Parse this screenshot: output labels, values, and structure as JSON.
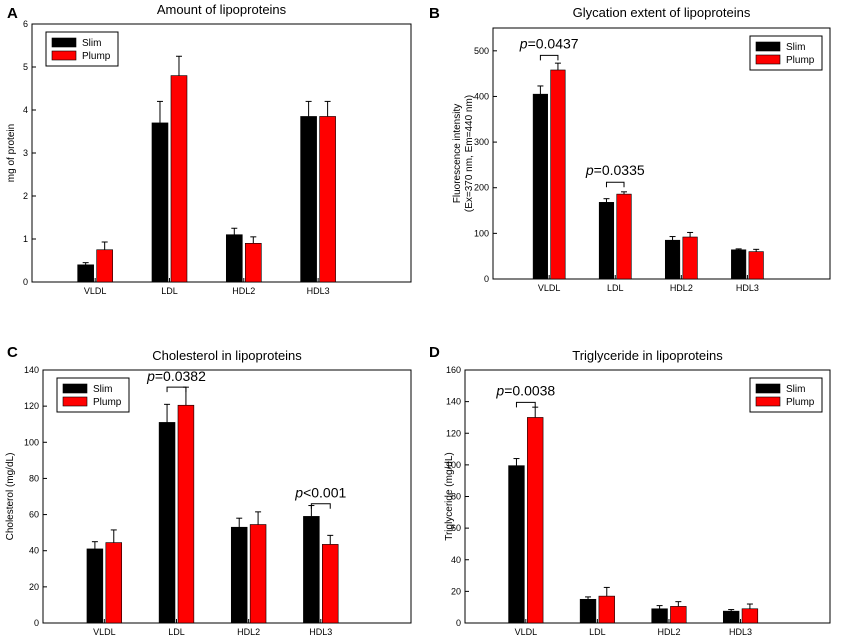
{
  "colors": {
    "slim": "#000000",
    "plump": "#ff0000",
    "error_bar": "#000000"
  },
  "legend_labels": {
    "slim": "Slim",
    "plump": "Plump"
  },
  "chart_data": [
    {
      "id": "A",
      "letter": "A",
      "type": "bar",
      "title": "Amount of lipoproteins",
      "xlabel": "",
      "ylabel": [
        "mg of protein"
      ],
      "categories": [
        "VLDL",
        "LDL",
        "HDL2",
        "HDL3"
      ],
      "ylim": [
        0,
        6
      ],
      "yticks": [
        0,
        1,
        2,
        3,
        4,
        5,
        6
      ],
      "legend": "top-left",
      "series": [
        {
          "name": "Slim",
          "values": [
            0.4,
            3.7,
            1.1,
            3.85
          ],
          "errors": [
            0.05,
            0.5,
            0.15,
            0.35
          ]
        },
        {
          "name": "Plump",
          "values": [
            0.75,
            4.8,
            0.9,
            3.85
          ],
          "errors": [
            0.18,
            0.45,
            0.15,
            0.35
          ]
        }
      ],
      "annotations": []
    },
    {
      "id": "B",
      "letter": "B",
      "type": "bar",
      "title": "Glycation extent of lipoproteins",
      "xlabel": "",
      "ylabel": [
        "Fluorescence intensity",
        "(Ex=370 nm, Em=440 nm)"
      ],
      "categories": [
        "VLDL",
        "LDL",
        "HDL2",
        "HDL3"
      ],
      "ylim": [
        0,
        550
      ],
      "yticks": [
        0,
        100,
        200,
        300,
        400,
        500
      ],
      "legend": "top-right",
      "series": [
        {
          "name": "Slim",
          "values": [
            405,
            168,
            85,
            64
          ],
          "errors": [
            18,
            8,
            8,
            2
          ]
        },
        {
          "name": "Plump",
          "values": [
            458,
            186,
            92,
            60
          ],
          "errors": [
            15,
            5,
            10,
            5
          ]
        }
      ],
      "annotations": [
        {
          "category": 0,
          "label": "p",
          "text": "=0.0437",
          "y": 505,
          "bracket_y": 490
        },
        {
          "category": 1,
          "label": "p",
          "text": "=0.0335",
          "y": 228,
          "bracket_y": 212
        }
      ]
    },
    {
      "id": "C",
      "letter": "C",
      "type": "bar",
      "title": "Cholesterol in lipoproteins",
      "xlabel": "",
      "ylabel": [
        "Cholesterol (mg/dL)"
      ],
      "categories": [
        "VLDL",
        "LDL",
        "HDL2",
        "HDL3"
      ],
      "ylim": [
        0,
        140
      ],
      "yticks": [
        0,
        20,
        40,
        60,
        80,
        100,
        120,
        140
      ],
      "legend": "top-left",
      "series": [
        {
          "name": "Slim",
          "values": [
            41,
            111,
            53,
            59
          ],
          "errors": [
            4,
            10,
            5,
            6
          ]
        },
        {
          "name": "Plump",
          "values": [
            44.5,
            120.5,
            54.5,
            43.5
          ],
          "errors": [
            7,
            10,
            7,
            5
          ]
        }
      ],
      "annotations": [
        {
          "category": 1,
          "label": "p",
          "text": "=0.0382",
          "y": 134,
          "bracket_y": 130.5
        },
        {
          "category": 3,
          "label": "p",
          "text": "<0.001",
          "y": 69.5,
          "bracket_y": 66
        }
      ]
    },
    {
      "id": "D",
      "letter": "D",
      "type": "bar",
      "title": "Triglyceride in lipoproteins",
      "xlabel": "",
      "ylabel": [
        "Triglyceride (mg/dL)"
      ],
      "categories": [
        "VLDL",
        "LDL",
        "HDL2",
        "HDL3"
      ],
      "ylim": [
        0,
        160
      ],
      "yticks": [
        0,
        20,
        40,
        60,
        80,
        100,
        120,
        140,
        160
      ],
      "legend": "top-right",
      "series": [
        {
          "name": "Slim",
          "values": [
            99.5,
            15,
            9,
            7.5
          ],
          "errors": [
            4.5,
            1.5,
            2,
            1
          ]
        },
        {
          "name": "Plump",
          "values": [
            130,
            17,
            10.5,
            9
          ],
          "errors": [
            6.5,
            5.5,
            3,
            3
          ]
        }
      ],
      "annotations": [
        {
          "category": 0,
          "label": "p",
          "text": "=0.0038",
          "y": 144,
          "bracket_y": 139.5
        }
      ]
    }
  ]
}
